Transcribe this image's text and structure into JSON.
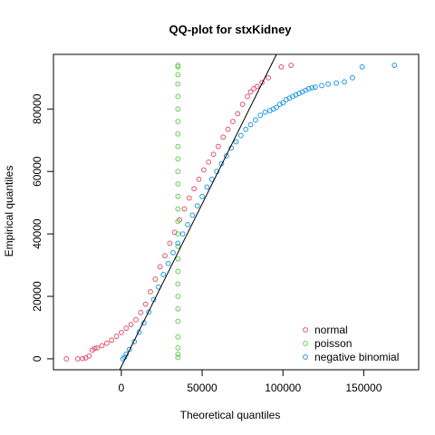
{
  "chart_data": {
    "type": "scatter",
    "title": "QQ-plot for stxKidney",
    "xlabel": "Theoretical quantiles",
    "ylabel": "Empirical quantiles",
    "xlim": [
      -42000,
      184000
    ],
    "ylim": [
      -3500,
      97500
    ],
    "x_ticks": [
      0,
      50000,
      100000,
      150000
    ],
    "y_ticks": [
      0,
      20000,
      40000,
      60000,
      80000
    ],
    "x_tick_labels": [
      "0",
      "50000",
      "100000",
      "150000"
    ],
    "y_tick_labels": [
      "0",
      "20000",
      "40000",
      "60000",
      "80000"
    ],
    "grid": false,
    "legend_position": "bottom-right",
    "reference_line": {
      "x": [
        -1000,
        96000
      ],
      "y": [
        -3500,
        97500
      ],
      "color": "#000000"
    },
    "series": [
      {
        "name": "normal",
        "color": "#DF536B",
        "points": [
          [
            -34000,
            0
          ],
          [
            -27000,
            0
          ],
          [
            -24000,
            100
          ],
          [
            -22000,
            300
          ],
          [
            -20000,
            900
          ],
          [
            -18000,
            2800
          ],
          [
            -16500,
            3300
          ],
          [
            -15000,
            3500
          ],
          [
            -12000,
            4200
          ],
          [
            -9000,
            5000
          ],
          [
            -6000,
            6000
          ],
          [
            -3000,
            7200
          ],
          [
            0,
            8400
          ],
          [
            3000,
            9800
          ],
          [
            6000,
            11000
          ],
          [
            9000,
            12500
          ],
          [
            12000,
            14800
          ],
          [
            15000,
            17500
          ],
          [
            18000,
            21500
          ],
          [
            21000,
            25500
          ],
          [
            24000,
            29500
          ],
          [
            27000,
            33000
          ],
          [
            30000,
            37000
          ],
          [
            33000,
            40500
          ],
          [
            36000,
            44500
          ],
          [
            39000,
            48000
          ],
          [
            42000,
            51500
          ],
          [
            45000,
            54500
          ],
          [
            48000,
            57500
          ],
          [
            51000,
            60500
          ],
          [
            54000,
            63000
          ],
          [
            57000,
            65500
          ],
          [
            60000,
            68000
          ],
          [
            63000,
            71000
          ],
          [
            66000,
            73500
          ],
          [
            69000,
            76000
          ],
          [
            72000,
            78500
          ],
          [
            75000,
            81500
          ],
          [
            78000,
            84000
          ],
          [
            80000,
            85500
          ],
          [
            82000,
            86500
          ],
          [
            84000,
            87200
          ],
          [
            87000,
            88500
          ],
          [
            91000,
            90000
          ],
          [
            99000,
            93500
          ],
          [
            105000,
            94000
          ]
        ]
      },
      {
        "name": "poisson",
        "color": "#61D04F",
        "points": [
          [
            35000,
            500
          ],
          [
            35000,
            1500
          ],
          [
            35000,
            3500
          ],
          [
            35000,
            7000
          ],
          [
            35000,
            12000
          ],
          [
            35000,
            16000
          ],
          [
            35000,
            20000
          ],
          [
            35000,
            24000
          ],
          [
            35000,
            28000
          ],
          [
            35000,
            32000
          ],
          [
            35000,
            36000
          ],
          [
            35000,
            40000
          ],
          [
            35000,
            44000
          ],
          [
            35000,
            48000
          ],
          [
            35000,
            52000
          ],
          [
            35000,
            56000
          ],
          [
            35000,
            60000
          ],
          [
            35000,
            64000
          ],
          [
            35000,
            68000
          ],
          [
            35000,
            72000
          ],
          [
            35000,
            76000
          ],
          [
            35000,
            80000
          ],
          [
            35000,
            84000
          ],
          [
            35000,
            88000
          ],
          [
            35000,
            91000
          ],
          [
            35000,
            93500
          ],
          [
            35000,
            94000
          ]
        ]
      },
      {
        "name": "negative binomial",
        "color": "#2297E6",
        "points": [
          [
            1000,
            0
          ],
          [
            2000,
            500
          ],
          [
            3000,
            1500
          ],
          [
            5000,
            3000
          ],
          [
            8000,
            5500
          ],
          [
            11000,
            8500
          ],
          [
            14000,
            11500
          ],
          [
            17000,
            15000
          ],
          [
            20000,
            19000
          ],
          [
            23000,
            23000
          ],
          [
            26000,
            27000
          ],
          [
            29000,
            30500
          ],
          [
            32000,
            34000
          ],
          [
            35000,
            37000
          ],
          [
            38000,
            40000
          ],
          [
            41000,
            43000
          ],
          [
            44000,
            46000
          ],
          [
            47000,
            49000
          ],
          [
            50000,
            52000
          ],
          [
            53000,
            55000
          ],
          [
            56000,
            57500
          ],
          [
            59000,
            60000
          ],
          [
            62000,
            62500
          ],
          [
            65000,
            65000
          ],
          [
            68000,
            67500
          ],
          [
            71000,
            69500
          ],
          [
            74000,
            71500
          ],
          [
            77000,
            73500
          ],
          [
            80000,
            75000
          ],
          [
            83000,
            76500
          ],
          [
            86000,
            78000
          ],
          [
            89000,
            79000
          ],
          [
            92000,
            79500
          ],
          [
            94000,
            80000
          ],
          [
            96000,
            80500
          ],
          [
            98000,
            81500
          ],
          [
            100000,
            82000
          ],
          [
            102000,
            83000
          ],
          [
            104000,
            83500
          ],
          [
            106000,
            84000
          ],
          [
            108000,
            84500
          ],
          [
            110000,
            85000
          ],
          [
            112000,
            85500
          ],
          [
            114000,
            86000
          ],
          [
            116000,
            86500
          ],
          [
            118000,
            86800
          ],
          [
            120000,
            87000
          ],
          [
            124000,
            87500
          ],
          [
            128000,
            88000
          ],
          [
            133000,
            88300
          ],
          [
            138000,
            88700
          ],
          [
            143000,
            90000
          ],
          [
            149000,
            93500
          ],
          [
            169000,
            94000
          ]
        ]
      }
    ]
  }
}
